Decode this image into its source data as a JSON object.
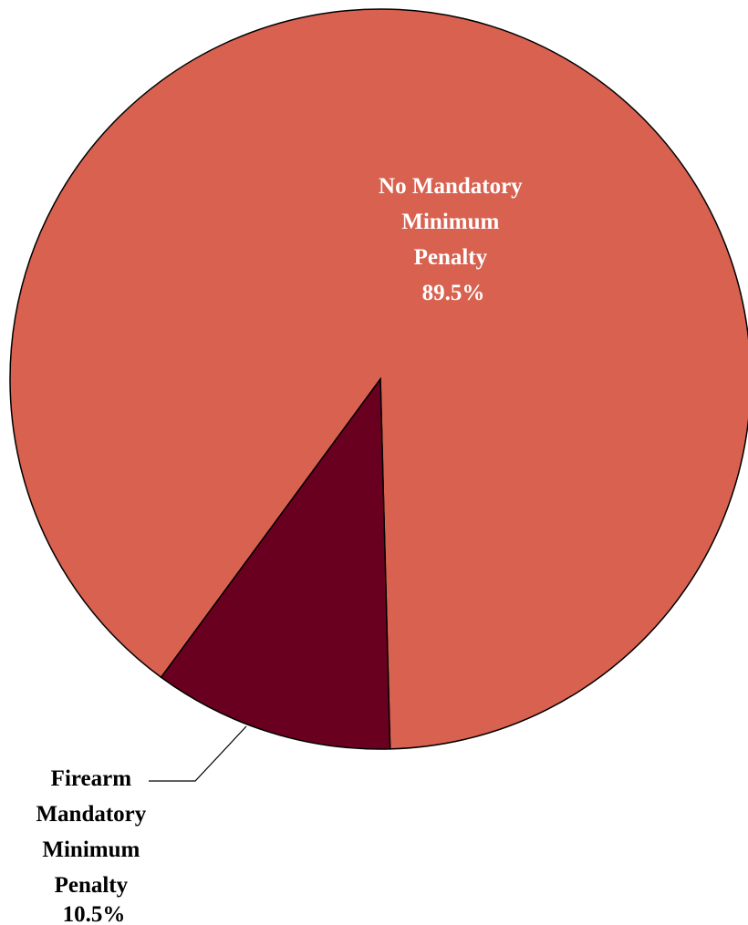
{
  "chart_data": {
    "type": "pie",
    "title": "",
    "slices": [
      {
        "label_lines": [
          "No Mandatory",
          "Minimum",
          "Penalty"
        ],
        "value_label": "89.5%",
        "value": 89.5,
        "color": "#D86150",
        "label_color": "#FFFFFF"
      },
      {
        "label_lines": [
          "Firearm",
          "Mandatory",
          "Minimum",
          "Penalty"
        ],
        "value_label": "10.5%",
        "value": 10.5,
        "color": "#6A0020",
        "label_color": "#000000"
      }
    ]
  }
}
